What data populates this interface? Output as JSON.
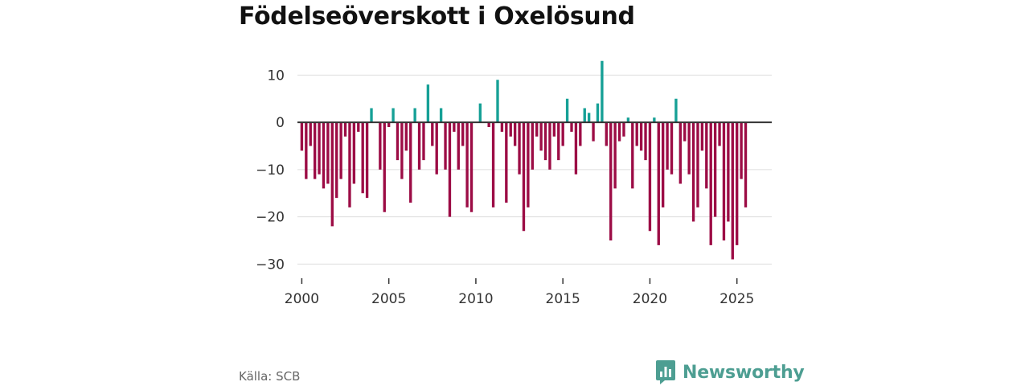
{
  "title": "Födelseöverskott i Oxelösund",
  "source": "Källa: SCB",
  "brand": {
    "name": "Newsworthy",
    "icon": "newsworthy-chart-icon"
  },
  "colors": {
    "positive": "#16a096",
    "negative": "#9c0c45",
    "zero_line": "#333333",
    "grid": "#dddddd",
    "brand": "#4d9e92"
  },
  "chart_data": {
    "type": "bar",
    "title": "Födelseöverskott i Oxelösund",
    "xlabel": "",
    "ylabel": "",
    "ylim": [
      -33,
      15
    ],
    "xlim": [
      1999.75,
      2027.0
    ],
    "y_ticks": [
      10,
      0,
      -10,
      -20,
      -30
    ],
    "y_tick_labels": [
      "10",
      "0",
      "−10",
      "−20",
      "−30"
    ],
    "x_ticks": [
      2000,
      2005,
      2010,
      2015,
      2020,
      2025
    ],
    "x_tick_labels": [
      "2000",
      "2005",
      "2010",
      "2015",
      "2020",
      "2025"
    ],
    "grid": true,
    "legend": "none",
    "frequency": "quarterly",
    "start": 2000.0,
    "step": 0.25,
    "values": [
      -6,
      -12,
      -5,
      -12,
      -11,
      -14,
      -13,
      -22,
      -16,
      -12,
      -3,
      -18,
      -13,
      -2,
      -15,
      -16,
      3,
      0,
      -10,
      -19,
      -1,
      3,
      -8,
      -12,
      -6,
      -17,
      3,
      -10,
      -8,
      8,
      -5,
      -11,
      3,
      -10,
      -20,
      -2,
      -10,
      -5,
      -18,
      -19,
      0,
      4,
      0,
      -1,
      -18,
      9,
      -2,
      -17,
      -3,
      -5,
      -11,
      -23,
      -18,
      -10,
      -3,
      -6,
      -8,
      -10,
      -3,
      -8,
      -5,
      5,
      -2,
      -11,
      -5,
      3,
      2,
      -4,
      4,
      13,
      -5,
      -25,
      -14,
      -4,
      -3,
      1,
      -14,
      -5,
      -6,
      -8,
      -23,
      1,
      -26,
      -18,
      -10,
      -11,
      5,
      -13,
      -4,
      -11,
      -21,
      -18,
      -6,
      -14,
      -26,
      -20,
      -5,
      -25,
      -21,
      -29,
      -26,
      -12,
      -18
    ]
  }
}
